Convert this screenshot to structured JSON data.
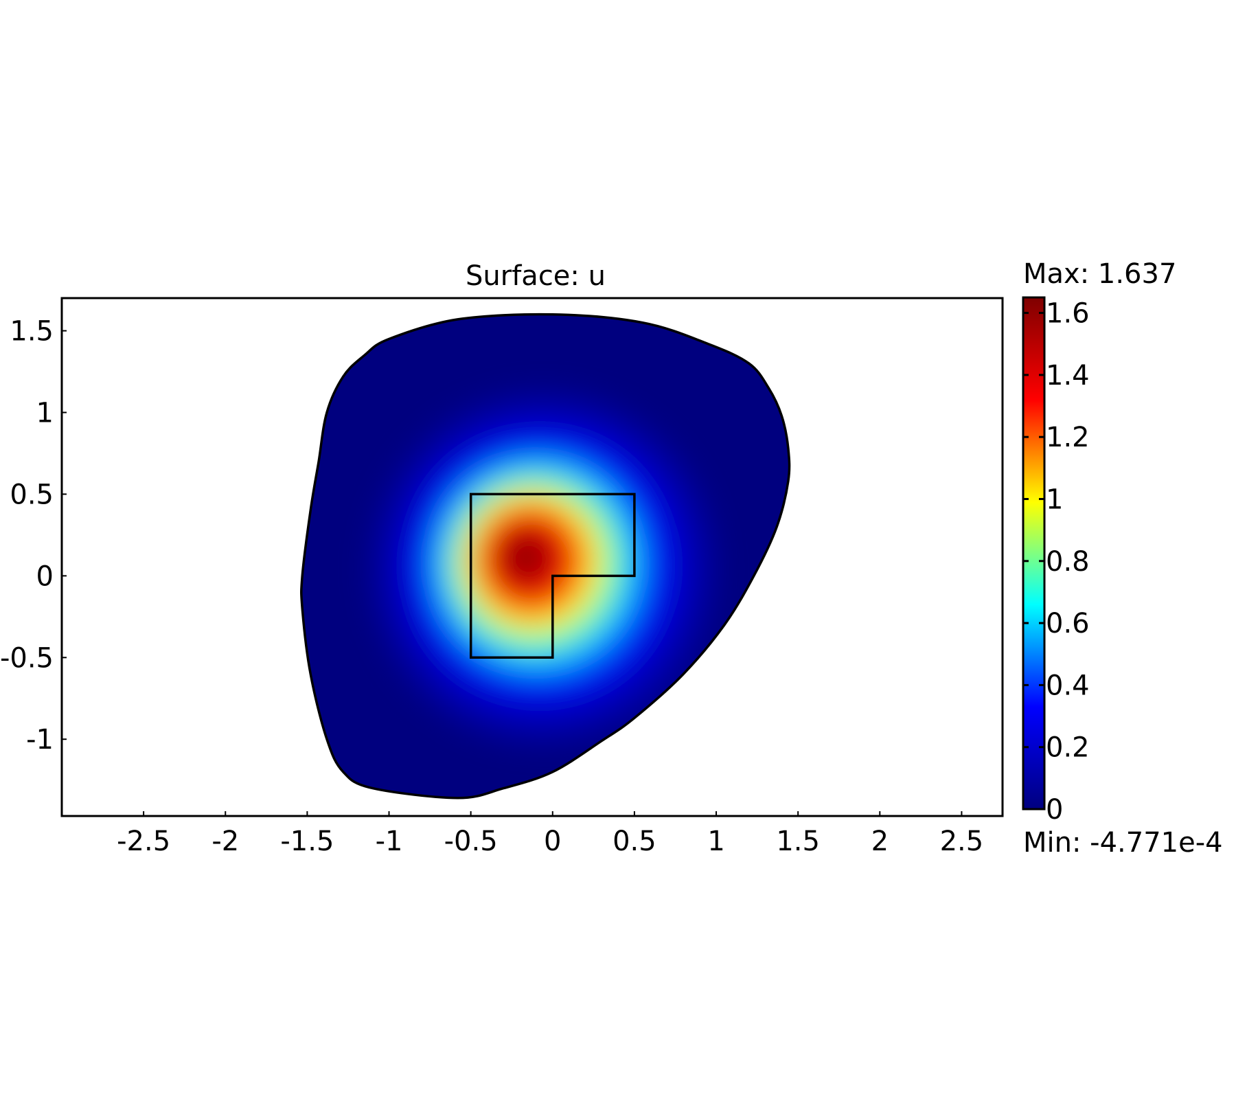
{
  "chart_data": {
    "type": "heatmap",
    "title": "Surface: u",
    "xlabel": "",
    "ylabel": "",
    "xlim": [
      -3.0,
      2.75
    ],
    "ylim": [
      -1.47,
      1.7
    ],
    "x_ticks": [
      -2.5,
      -2,
      -1.5,
      -1,
      -0.5,
      0,
      0.5,
      1,
      1.5,
      2,
      2.5
    ],
    "y_ticks": [
      -1,
      -0.5,
      0,
      0.5,
      1,
      1.5
    ],
    "x_tick_labels": [
      "-2.5",
      "-2",
      "-1.5",
      "-1",
      "-0.5",
      "0",
      "0.5",
      "1",
      "1.5",
      "2",
      "2.5"
    ],
    "y_tick_labels": [
      "-1",
      "-0.5",
      "0",
      "0.5",
      "1",
      "1.5"
    ],
    "grid": false,
    "colormap": "rainbow",
    "colormap_stops": [
      "#00007f",
      "#0000ff",
      "#00ffff",
      "#ffff00",
      "#ff0000",
      "#7f0000"
    ],
    "colorbar": {
      "range": [
        0,
        1.65
      ],
      "ticks": [
        0,
        0.2,
        0.4,
        0.6,
        0.8,
        1,
        1.2,
        1.4,
        1.6
      ],
      "tick_labels": [
        "0",
        "0.2",
        "0.4",
        "0.6",
        "0.8",
        "1",
        "1.2",
        "1.4",
        "1.6"
      ],
      "max_label": "Max: 1.637",
      "min_label": "Min: -4.771e-4"
    },
    "peak": {
      "x": -0.17,
      "y": 0.12,
      "value": 1.637
    },
    "domain_boundary": [
      [
        -0.58,
        1.57
      ],
      [
        0.0,
        1.6
      ],
      [
        0.55,
        1.55
      ],
      [
        0.95,
        1.42
      ],
      [
        1.2,
        1.3
      ],
      [
        1.32,
        1.15
      ],
      [
        1.4,
        0.98
      ],
      [
        1.44,
        0.78
      ],
      [
        1.44,
        0.58
      ],
      [
        1.37,
        0.3
      ],
      [
        1.23,
        0.0
      ],
      [
        1.05,
        -0.3
      ],
      [
        0.8,
        -0.6
      ],
      [
        0.5,
        -0.87
      ],
      [
        0.3,
        -1.01
      ],
      [
        0.0,
        -1.2
      ],
      [
        -0.3,
        -1.3
      ],
      [
        -0.58,
        -1.36
      ],
      [
        -1.1,
        -1.3
      ],
      [
        -1.28,
        -1.2
      ],
      [
        -1.38,
        -1.0
      ],
      [
        -1.48,
        -0.6
      ],
      [
        -1.53,
        -0.2
      ],
      [
        -1.53,
        0.0
      ],
      [
        -1.48,
        0.4
      ],
      [
        -1.43,
        0.7
      ],
      [
        -1.38,
        1.0
      ],
      [
        -1.28,
        1.22
      ],
      [
        -1.15,
        1.35
      ],
      [
        -1.0,
        1.45
      ]
    ],
    "l_shape": [
      [
        -0.5,
        0.5
      ],
      [
        0.5,
        0.5
      ],
      [
        0.5,
        0
      ],
      [
        0,
        0
      ],
      [
        0,
        -0.5
      ],
      [
        -0.5,
        -0.5
      ]
    ]
  }
}
